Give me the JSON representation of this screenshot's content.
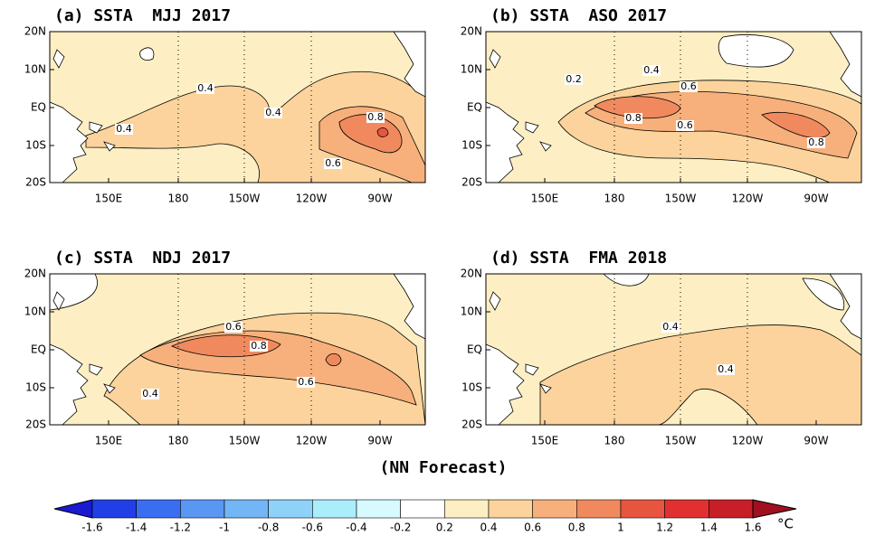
{
  "panels": [
    {
      "title": "(a) SSTA  MJJ 2017",
      "contour_labels": [
        "0.4",
        "0.4",
        "0.4",
        "0.8",
        "0.6"
      ]
    },
    {
      "title": "(b) SSTA  ASO 2017",
      "contour_labels": [
        "0.2",
        "0.4",
        "0.6",
        "0.8",
        "0.6",
        "0.8"
      ]
    },
    {
      "title": "(c) SSTA  NDJ 2017",
      "contour_labels": [
        "0.6",
        "0.8",
        "0.6",
        "0.4"
      ]
    },
    {
      "title": "(d) SSTA  FMA 2018",
      "contour_labels": [
        "0.4",
        "0.4"
      ]
    }
  ],
  "longitudes": [
    "150E",
    "180",
    "150W",
    "120W",
    "90W"
  ],
  "latitudes": [
    "20N",
    "10N",
    "EQ",
    "10S",
    "20S"
  ],
  "caption": "(NN Forecast)",
  "colorbar": {
    "labels": [
      "-1.6",
      "-1.4",
      "-1.2",
      "-1",
      "-0.8",
      "-0.6",
      "-0.4",
      "-0.2",
      "0.2",
      "0.4",
      "0.6",
      "0.8",
      "1",
      "1.2",
      "1.4",
      "1.6"
    ],
    "colors": [
      "#1a1ad0",
      "#2040e6",
      "#3a6ef0",
      "#5a96f4",
      "#72b6f6",
      "#8ed2fa",
      "#aaeefc",
      "#d6fafe",
      "#ffffff",
      "#fdefc3",
      "#fcd39c",
      "#f7b07b",
      "#f08a5e",
      "#e8553f",
      "#e03030",
      "#c81e28",
      "#a01020"
    ],
    "unit": "°C"
  }
}
